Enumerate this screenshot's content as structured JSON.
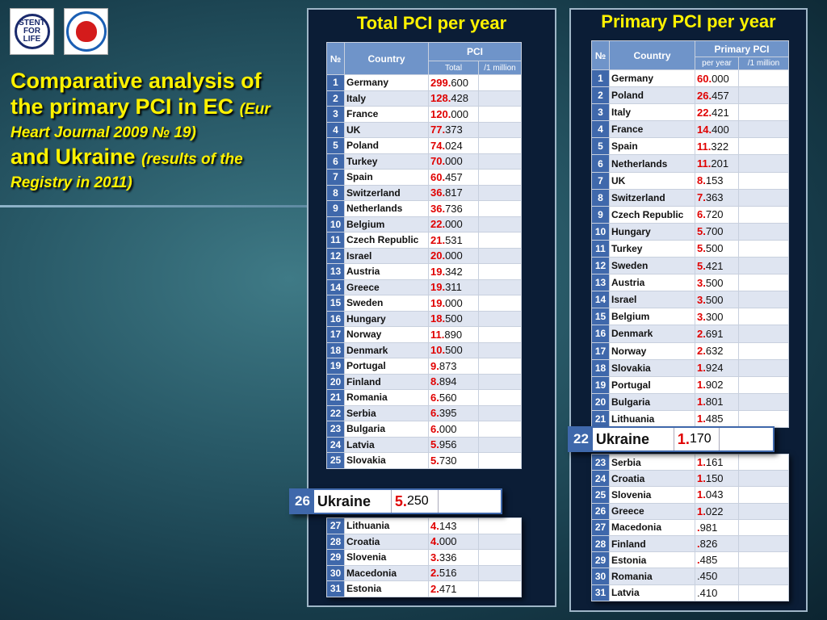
{
  "logos": {
    "stent_for_life_text": "STENT FOR LIFE",
    "association_logo": "heart-association-logo"
  },
  "title": {
    "line1": "Comparative analysis of",
    "line2_bold": "the primary PCI in EC",
    "line2_italic": "(Eur",
    "line3": "Heart Journal 2009 № 19)",
    "line4_bold": "and Ukraine",
    "line4_italic": "(results of the",
    "line5": "Registry in 2011)"
  },
  "left_panel": {
    "title": "Total PCI per year",
    "headers": {
      "num": "№",
      "country": "Country",
      "group": "PCI",
      "col1": "Total",
      "col2": "/1 million"
    },
    "rows": [
      {
        "n": "1",
        "country": "Germany",
        "int": "299.",
        "dec": "600"
      },
      {
        "n": "2",
        "country": "Italy",
        "int": "128.",
        "dec": "428"
      },
      {
        "n": "3",
        "country": "France",
        "int": "120.",
        "dec": "000"
      },
      {
        "n": "4",
        "country": "UK",
        "int": "77.",
        "dec": "373"
      },
      {
        "n": "5",
        "country": "Poland",
        "int": "74.",
        "dec": "024"
      },
      {
        "n": "6",
        "country": "Turkey",
        "int": "70.",
        "dec": "000"
      },
      {
        "n": "7",
        "country": "Spain",
        "int": "60.",
        "dec": "457"
      },
      {
        "n": "8",
        "country": "Switzerland",
        "int": "36.",
        "dec": "817"
      },
      {
        "n": "9",
        "country": "Netherlands",
        "int": "36.",
        "dec": "736"
      },
      {
        "n": "10",
        "country": "Belgium",
        "int": "22.",
        "dec": "000"
      },
      {
        "n": "11",
        "country": "Czech Republic",
        "int": "21.",
        "dec": "531"
      },
      {
        "n": "12",
        "country": "Israel",
        "int": "20.",
        "dec": "000"
      },
      {
        "n": "13",
        "country": "Austria",
        "int": "19.",
        "dec": "342"
      },
      {
        "n": "14",
        "country": "Greece",
        "int": "19.",
        "dec": "311"
      },
      {
        "n": "15",
        "country": "Sweden",
        "int": "19.",
        "dec": "000"
      },
      {
        "n": "16",
        "country": "Hungary",
        "int": "18.",
        "dec": "500"
      },
      {
        "n": "17",
        "country": "Norway",
        "int": "11.",
        "dec": "890"
      },
      {
        "n": "18",
        "country": "Denmark",
        "int": "10.",
        "dec": "500"
      },
      {
        "n": "19",
        "country": "Portugal",
        "int": "9.",
        "dec": "873"
      },
      {
        "n": "20",
        "country": "Finland",
        "int": "8.",
        "dec": "894"
      },
      {
        "n": "21",
        "country": "Romania",
        "int": "6.",
        "dec": "560"
      },
      {
        "n": "22",
        "country": "Serbia",
        "int": "6.",
        "dec": "395"
      },
      {
        "n": "23",
        "country": "Bulgaria",
        "int": "6.",
        "dec": "000"
      },
      {
        "n": "24",
        "country": "Latvia",
        "int": "5.",
        "dec": "956"
      },
      {
        "n": "25",
        "country": "Slovakia",
        "int": "5.",
        "dec": "730"
      }
    ],
    "rows_after": [
      {
        "n": "27",
        "country": "Lithuania",
        "int": "4.",
        "dec": "143"
      },
      {
        "n": "28",
        "country": "Croatia",
        "int": "4.",
        "dec": "000"
      },
      {
        "n": "29",
        "country": "Slovenia",
        "int": "3.",
        "dec": "336"
      },
      {
        "n": "30",
        "country": "Macedonia",
        "int": "2.",
        "dec": "516"
      },
      {
        "n": "31",
        "country": "Estonia",
        "int": "2.",
        "dec": "471"
      }
    ],
    "ukraine": {
      "n": "26",
      "country": "Ukraine",
      "int": "5.",
      "dec": "250"
    }
  },
  "right_panel": {
    "title": "Primary PCI per year",
    "headers": {
      "num": "№",
      "country": "Country",
      "group": "Primary PCI",
      "col1": "per year",
      "col2": "/1 million"
    },
    "rows": [
      {
        "n": "1",
        "country": "Germany",
        "int": "60.",
        "dec": "000"
      },
      {
        "n": "2",
        "country": "Poland",
        "int": "26.",
        "dec": "457"
      },
      {
        "n": "3",
        "country": "Italy",
        "int": "22.",
        "dec": "421"
      },
      {
        "n": "4",
        "country": "France",
        "int": "14.",
        "dec": "400"
      },
      {
        "n": "5",
        "country": "Spain",
        "int": "11.",
        "dec": "322"
      },
      {
        "n": "6",
        "country": "Netherlands",
        "int": "11.",
        "dec": "201"
      },
      {
        "n": "7",
        "country": "UK",
        "int": "8.",
        "dec": "153"
      },
      {
        "n": "8",
        "country": "Switzerland",
        "int": "7.",
        "dec": "363"
      },
      {
        "n": "9",
        "country": "Czech Republic",
        "int": "6.",
        "dec": "720"
      },
      {
        "n": "10",
        "country": "Hungary",
        "int": "5.",
        "dec": "700"
      },
      {
        "n": "11",
        "country": "Turkey",
        "int": "5.",
        "dec": "500"
      },
      {
        "n": "12",
        "country": "Sweden",
        "int": "5.",
        "dec": "421"
      },
      {
        "n": "13",
        "country": "Austria",
        "int": "3.",
        "dec": "500"
      },
      {
        "n": "14",
        "country": "Israel",
        "int": "3.",
        "dec": "500"
      },
      {
        "n": "15",
        "country": "Belgium",
        "int": "3.",
        "dec": "300"
      },
      {
        "n": "16",
        "country": "Denmark",
        "int": "2.",
        "dec": "691"
      },
      {
        "n": "17",
        "country": "Norway",
        "int": "2.",
        "dec": "632"
      },
      {
        "n": "18",
        "country": "Slovakia",
        "int": "1.",
        "dec": "924"
      },
      {
        "n": "19",
        "country": "Portugal",
        "int": "1.",
        "dec": "902"
      },
      {
        "n": "20",
        "country": "Bulgaria",
        "int": "1.",
        "dec": "801"
      },
      {
        "n": "21",
        "country": "Lithuania",
        "int": "1.",
        "dec": "485"
      }
    ],
    "rows_after": [
      {
        "n": "23",
        "country": "Serbia",
        "int": "1.",
        "dec": "161"
      },
      {
        "n": "24",
        "country": "Croatia",
        "int": "1.",
        "dec": "150"
      },
      {
        "n": "25",
        "country": "Slovenia",
        "int": "1.",
        "dec": "043"
      },
      {
        "n": "26",
        "country": "Greece",
        "int": "1.",
        "dec": "022"
      },
      {
        "n": "27",
        "country": "Macedonia",
        "int": ".",
        "dec": "981"
      },
      {
        "n": "28",
        "country": "Finland",
        "int": ".",
        "dec": "826"
      },
      {
        "n": "29",
        "country": "Estonia",
        "int": ".",
        "dec": "485"
      },
      {
        "n": "30",
        "country": "Romania",
        "int": "",
        "dec": ".450"
      },
      {
        "n": "31",
        "country": "Latvia",
        "int": "",
        "dec": ".410"
      }
    ],
    "ukraine": {
      "n": "22",
      "country": "Ukraine",
      "int": "1.",
      "dec": "170"
    }
  },
  "colors": {
    "title_yellow": "#fff200",
    "header_blue": "#6f94c9",
    "number_blue": "#3f68ab",
    "value_red": "#e00000"
  }
}
